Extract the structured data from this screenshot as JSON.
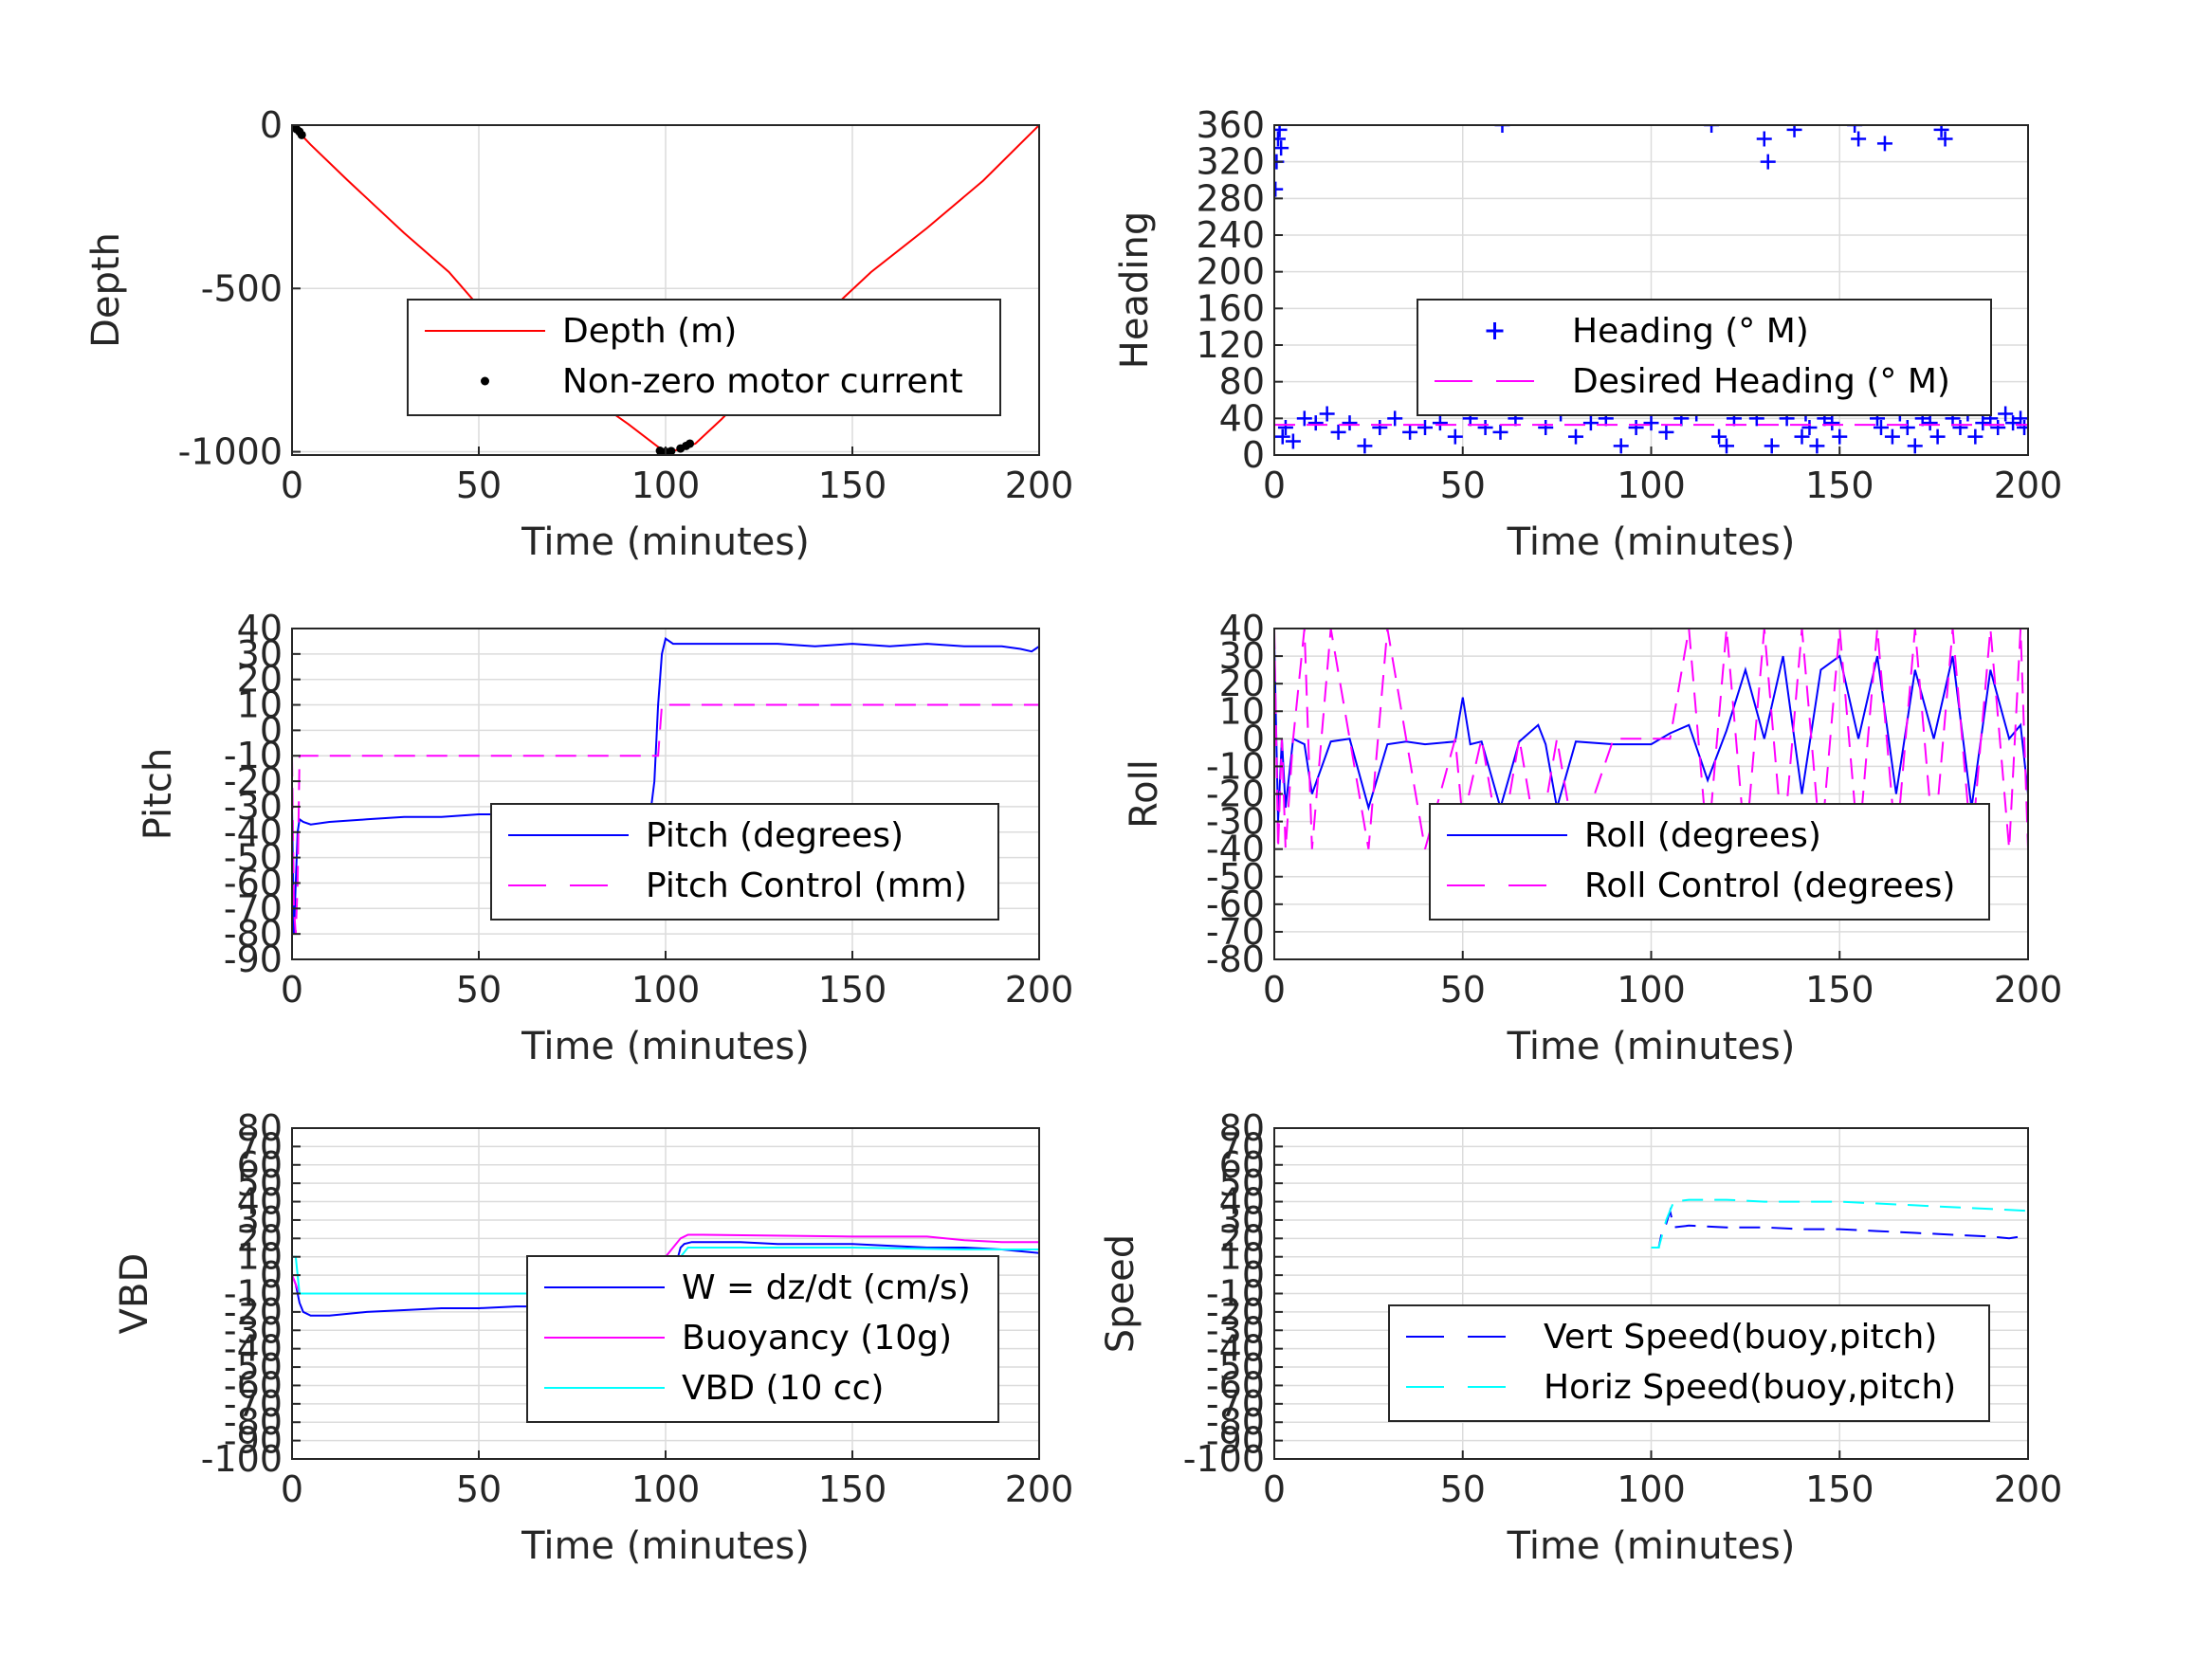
{
  "chart_data": [
    {
      "id": "depth",
      "type": "line",
      "xlabel": "Time (minutes)",
      "ylabel": "Depth",
      "xlim": [
        0,
        200
      ],
      "ylim": [
        -1010,
        0
      ],
      "xticks": [
        0,
        50,
        100,
        150,
        200
      ],
      "xtick_labels": [
        "0",
        "50",
        "100",
        "150",
        "200"
      ],
      "yticks": [
        0,
        -500,
        -1000
      ],
      "ytick_labels": [
        "0",
        "-500",
        "-1000"
      ],
      "grid": true,
      "legend_position": "center-right",
      "series": [
        {
          "name": "Depth (m)",
          "style": "line",
          "color": "#ff0000",
          "x": [
            0,
            5,
            15,
            30,
            42,
            50,
            60,
            70,
            80,
            90,
            98,
            100,
            103,
            108,
            115,
            125,
            140,
            155,
            170,
            185,
            200
          ],
          "y": [
            0,
            -60,
            -170,
            -330,
            -450,
            -555,
            -660,
            -755,
            -835,
            -915,
            -985,
            -998,
            -995,
            -975,
            -900,
            -785,
            -610,
            -450,
            -315,
            -170,
            0
          ]
        },
        {
          "name": "Non-zero motor current",
          "style": "dot",
          "color": "#000000",
          "x": [
            0.5,
            1.2,
            2.0,
            2.6,
            98.5,
            100,
            101.5,
            104,
            105.5,
            106.5
          ],
          "y": [
            -5,
            -12,
            -20,
            -30,
            -997,
            -1000,
            -998,
            -990,
            -982,
            -975
          ]
        }
      ]
    },
    {
      "id": "heading",
      "type": "scatter",
      "xlabel": "Time (minutes)",
      "ylabel": "Heading",
      "xlim": [
        0,
        200
      ],
      "ylim": [
        0,
        360
      ],
      "xticks": [
        0,
        50,
        100,
        150,
        200
      ],
      "xtick_labels": [
        "0",
        "50",
        "100",
        "150",
        "200"
      ],
      "yticks": [
        0,
        40,
        80,
        120,
        160,
        200,
        240,
        280,
        320,
        360
      ],
      "ytick_labels": [
        "0",
        "40",
        "80",
        "120",
        "160",
        "200",
        "240",
        "280",
        "320",
        "360"
      ],
      "grid": true,
      "legend_position": "center-right",
      "series": [
        {
          "name": "Heading (° M)",
          "style": "plus",
          "color": "#0000ff",
          "x": [
            0.3,
            0.6,
            1.0,
            1.4,
            1.8,
            2.2,
            3,
            5,
            8,
            11,
            14,
            17,
            20,
            24,
            28,
            32,
            36,
            40,
            44,
            48,
            52,
            56,
            60,
            60.5,
            64,
            68,
            72,
            76,
            80,
            84,
            88,
            92,
            96,
            100,
            104,
            108,
            112,
            114,
            116,
            118,
            120,
            122,
            124,
            126,
            128,
            130,
            131,
            132,
            134,
            136,
            138,
            140,
            141,
            142,
            144,
            146,
            148,
            150,
            152,
            154,
            155,
            156,
            157,
            158,
            160,
            161,
            162,
            164,
            166,
            168,
            170,
            172,
            174,
            176,
            177,
            178,
            180,
            182,
            184,
            186,
            188,
            190,
            192,
            194,
            196,
            198,
            199
          ],
          "y": [
            290,
            320,
            345,
            355,
            335,
            20,
            30,
            15,
            40,
            35,
            45,
            25,
            35,
            10,
            30,
            40,
            25,
            30,
            35,
            20,
            40,
            30,
            25,
            360,
            40,
            60,
            30,
            45,
            20,
            35,
            40,
            10,
            30,
            35,
            25,
            40,
            45,
            60,
            360,
            20,
            10,
            40,
            90,
            120,
            40,
            345,
            320,
            10,
            60,
            40,
            355,
            20,
            45,
            30,
            10,
            40,
            35,
            20,
            60,
            360,
            345,
            100,
            120,
            70,
            40,
            30,
            340,
            20,
            45,
            30,
            10,
            40,
            35,
            20,
            355,
            345,
            40,
            30,
            45,
            20,
            35,
            40,
            30,
            45,
            35,
            40,
            30
          ]
        },
        {
          "name": "Desired Heading (° M)",
          "style": "dashed",
          "color": "#ff00ff",
          "x": [
            0,
            200
          ],
          "y": [
            33,
            33
          ]
        }
      ]
    },
    {
      "id": "pitch",
      "type": "line",
      "xlabel": "Time (minutes)",
      "ylabel": "Pitch",
      "xlim": [
        0,
        200
      ],
      "ylim": [
        -90,
        40
      ],
      "xticks": [
        0,
        50,
        100,
        150,
        200
      ],
      "xtick_labels": [
        "0",
        "50",
        "100",
        "150",
        "200"
      ],
      "yticks": [
        40,
        30,
        20,
        10,
        0,
        -10,
        -20,
        -30,
        -40,
        -50,
        -60,
        -70,
        -80,
        -90
      ],
      "ytick_labels": [
        "40",
        "30",
        "20",
        "10",
        "0",
        "-10",
        "-20",
        "-30",
        "-40",
        "-50",
        "-60",
        "-70",
        "-80",
        "-90"
      ],
      "grid": true,
      "legend_position": "center-right",
      "series": [
        {
          "name": "Pitch (degrees)",
          "style": "line",
          "color": "#0000ff",
          "x": [
            0,
            0.5,
            1,
            1.5,
            2,
            3,
            5,
            10,
            20,
            30,
            40,
            50,
            60,
            70,
            80,
            90,
            96,
            97,
            98,
            99,
            100,
            102,
            105,
            110,
            120,
            130,
            140,
            150,
            160,
            170,
            180,
            190,
            195,
            198,
            199,
            200
          ],
          "y": [
            -30,
            -80,
            -60,
            -40,
            -35,
            -36,
            -37,
            -36,
            -35,
            -34,
            -34,
            -33,
            -33,
            -32,
            -32,
            -32,
            -32,
            -20,
            10,
            30,
            36,
            34,
            34,
            34,
            34,
            34,
            33,
            34,
            33,
            34,
            33,
            33,
            32,
            31,
            32,
            33
          ]
        },
        {
          "name": "Pitch Control (mm)",
          "style": "dashed",
          "color": "#ff00ff",
          "x": [
            0,
            0.5,
            1,
            1.5,
            2,
            5,
            50,
            97,
            98,
            99,
            100,
            150,
            200
          ],
          "y": [
            -10,
            -70,
            -80,
            -60,
            -10,
            -10,
            -10,
            -10,
            -10,
            10,
            10,
            10,
            10
          ]
        }
      ]
    },
    {
      "id": "roll",
      "type": "line",
      "xlabel": "Time (minutes)",
      "ylabel": "Roll",
      "xlim": [
        0,
        200
      ],
      "ylim": [
        -80,
        40
      ],
      "xticks": [
        0,
        50,
        100,
        150,
        200
      ],
      "xtick_labels": [
        "0",
        "50",
        "100",
        "150",
        "200"
      ],
      "yticks": [
        40,
        30,
        20,
        10,
        0,
        -10,
        -20,
        -30,
        -40,
        -50,
        -60,
        -70,
        -80
      ],
      "ytick_labels": [
        "40",
        "30",
        "20",
        "10",
        "0",
        "-10",
        "-20",
        "-30",
        "-40",
        "-50",
        "-60",
        "-70",
        "-80"
      ],
      "grid": true,
      "legend_position": "center-right",
      "series": [
        {
          "name": "Roll (degrees)",
          "style": "line",
          "color": "#0000ff",
          "x": [
            0,
            1,
            2,
            3,
            5,
            8,
            10,
            15,
            20,
            25,
            30,
            35,
            40,
            48,
            50,
            52,
            55,
            60,
            65,
            70,
            72,
            75,
            80,
            90,
            100,
            105,
            110,
            115,
            120,
            125,
            130,
            135,
            140,
            145,
            150,
            155,
            160,
            165,
            170,
            175,
            180,
            185,
            190,
            195,
            198,
            200
          ],
          "y": [
            35,
            -30,
            0,
            -25,
            0,
            -2,
            -20,
            -1,
            0,
            -25,
            -2,
            -1,
            -2,
            -1,
            15,
            -2,
            -1,
            -25,
            -1,
            5,
            -2,
            -25,
            -1,
            -2,
            -2,
            2,
            5,
            -15,
            3,
            25,
            0,
            30,
            -20,
            25,
            30,
            0,
            30,
            -20,
            25,
            0,
            30,
            -25,
            25,
            0,
            5,
            -20
          ]
        },
        {
          "name": "Roll Control (degrees)",
          "style": "dashed",
          "color": "#ff00ff",
          "x": [
            0,
            1,
            2,
            3,
            5,
            8,
            10,
            15,
            20,
            25,
            30,
            35,
            40,
            48,
            50,
            55,
            60,
            65,
            70,
            75,
            80,
            90,
            100,
            105,
            110,
            115,
            120,
            125,
            130,
            135,
            140,
            145,
            150,
            155,
            160,
            165,
            170,
            175,
            180,
            185,
            190,
            195,
            198,
            200
          ],
          "y": [
            40,
            -40,
            0,
            -40,
            0,
            40,
            -40,
            40,
            0,
            -40,
            40,
            0,
            -40,
            0,
            -30,
            0,
            -40,
            0,
            -40,
            0,
            -40,
            0,
            0,
            0,
            40,
            -40,
            40,
            -40,
            40,
            -40,
            40,
            -40,
            40,
            -40,
            40,
            -40,
            40,
            -40,
            40,
            -40,
            40,
            -40,
            40,
            -40
          ]
        }
      ]
    },
    {
      "id": "vbd",
      "type": "line",
      "xlabel": "Time (minutes)",
      "ylabel": "VBD",
      "xlim": [
        0,
        200
      ],
      "ylim": [
        -100,
        80
      ],
      "xticks": [
        0,
        50,
        100,
        150,
        200
      ],
      "xtick_labels": [
        "0",
        "50",
        "100",
        "150",
        "200"
      ],
      "yticks": [
        80,
        70,
        60,
        50,
        40,
        30,
        20,
        10,
        0,
        -10,
        -20,
        -30,
        -40,
        -50,
        -60,
        -70,
        -80,
        -90,
        -100
      ],
      "ytick_labels": [
        "80",
        "70",
        "60",
        "50",
        "40",
        "30",
        "20",
        "10",
        "0",
        "-10",
        "-20",
        "-30",
        "-40",
        "-50",
        "-60",
        "-70",
        "-80",
        "-90",
        "-100"
      ],
      "grid": true,
      "legend_position": "center-right",
      "series": [
        {
          "name": "W = dz/dt (cm/s)",
          "style": "line",
          "color": "#0000ff",
          "x": [
            0,
            1,
            2,
            3,
            5,
            10,
            20,
            30,
            40,
            50,
            60,
            70,
            80,
            90,
            96,
            97,
            98,
            100,
            102,
            104,
            105,
            107,
            110,
            120,
            130,
            140,
            150,
            160,
            170,
            180,
            190,
            200
          ],
          "y": [
            0,
            -5,
            -15,
            -20,
            -22,
            -22,
            -20,
            -19,
            -18,
            -18,
            -17,
            -17,
            -16,
            -15,
            -15,
            -10,
            5,
            8,
            0,
            15,
            17,
            18,
            18,
            18,
            17,
            17,
            17,
            16,
            15,
            15,
            14,
            12
          ]
        },
        {
          "name": "Buoyancy (10g)",
          "style": "line",
          "color": "#ff00ff",
          "x": [
            0,
            1,
            2,
            5,
            50,
            97,
            98,
            100,
            104,
            106,
            110,
            150,
            170,
            180,
            190,
            200
          ],
          "y": [
            0,
            -5,
            -10,
            -10,
            -10,
            -10,
            5,
            10,
            20,
            22,
            22,
            21,
            21,
            19,
            18,
            18
          ]
        },
        {
          "name": "VBD (10 cc)",
          "style": "line",
          "color": "#00ffff",
          "x": [
            0,
            1,
            2,
            5,
            50,
            97,
            98,
            100,
            104,
            106,
            110,
            150,
            180,
            200
          ],
          "y": [
            10,
            10,
            -10,
            -10,
            -10,
            -10,
            5,
            10,
            10,
            15,
            15,
            15,
            14,
            14
          ]
        }
      ]
    },
    {
      "id": "speed",
      "type": "line",
      "xlabel": "Time (minutes)",
      "ylabel": "Speed",
      "xlim": [
        0,
        200
      ],
      "ylim": [
        -100,
        80
      ],
      "xticks": [
        0,
        50,
        100,
        150,
        200
      ],
      "xtick_labels": [
        "0",
        "50",
        "100",
        "150",
        "200"
      ],
      "yticks": [
        80,
        70,
        60,
        50,
        40,
        30,
        20,
        10,
        0,
        -10,
        -20,
        -30,
        -40,
        -50,
        -60,
        -70,
        -80,
        -90,
        -100
      ],
      "ytick_labels": [
        "80",
        "70",
        "60",
        "50",
        "40",
        "30",
        "20",
        "10",
        "0",
        "-10",
        "-20",
        "-30",
        "-40",
        "-50",
        "-60",
        "-70",
        "-80",
        "-90",
        "-100"
      ],
      "grid": true,
      "legend_position": "lower-right",
      "series": [
        {
          "name": "Vert Speed(buoy,pitch)",
          "style": "dashed",
          "color": "#0000ff",
          "x": [
            100,
            102,
            103,
            104,
            105,
            106,
            110,
            120,
            130,
            140,
            150,
            160,
            170,
            180,
            190,
            195,
            198,
            200
          ],
          "y": [
            15,
            15,
            25,
            28,
            35,
            26,
            27,
            26,
            26,
            25,
            25,
            24,
            23,
            22,
            21,
            20,
            21,
            20
          ]
        },
        {
          "name": "Horiz Speed(buoy,pitch)",
          "style": "dashed",
          "color": "#00ffff",
          "x": [
            100,
            102,
            104,
            106,
            110,
            120,
            130,
            140,
            150,
            160,
            170,
            180,
            190,
            200
          ],
          "y": [
            15,
            15,
            30,
            40,
            41,
            41,
            40,
            40,
            40,
            39,
            38,
            37,
            36,
            35
          ]
        }
      ]
    }
  ]
}
